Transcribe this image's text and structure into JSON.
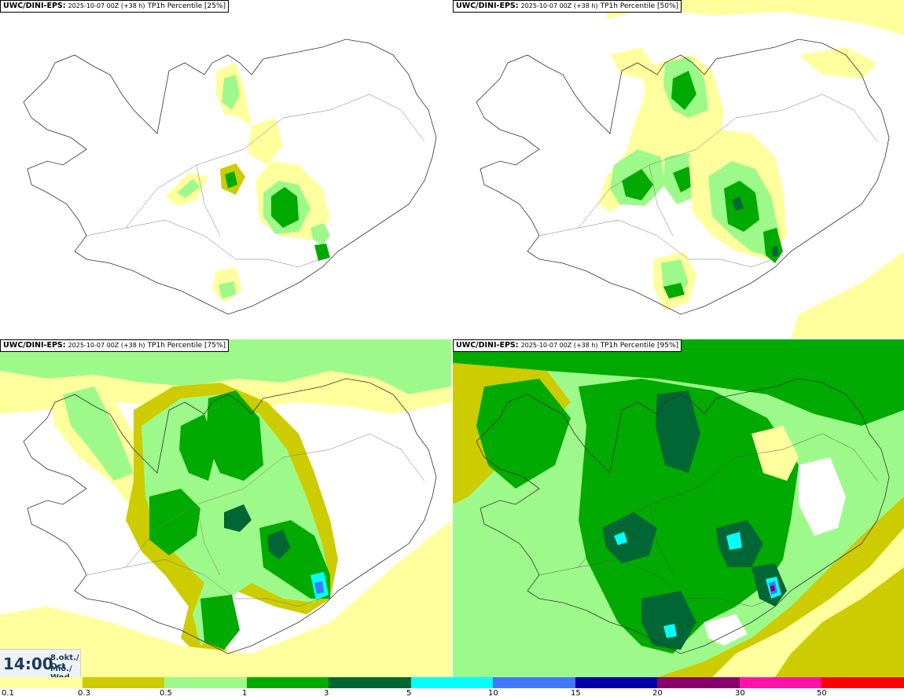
{
  "panels": [
    {
      "model": "UWC/DINI-EPS:",
      "run": "2025-10-07 00Z (+38 h)",
      "field": "TP1h Percentile [25%]"
    },
    {
      "model": "UWC/DINI-EPS:",
      "run": "2025-10-07 00Z (+38 h)",
      "field": "TP1h Percentile [50%]"
    },
    {
      "model": "UWC/DINI-EPS:",
      "run": "2025-10-07 00Z (+38 h)",
      "field": "TP1h Percentile [75%]"
    },
    {
      "model": "UWC/DINI-EPS:",
      "run": "2025-10-07 00Z (+38 h)",
      "field": "TP1h Percentile [95%]"
    }
  ],
  "valid_time": {
    "time": "14:00",
    "date_line1": "8.okt./ Oct",
    "date_line2": "Mið./ Wed"
  },
  "legend": {
    "colors": [
      "#ffff9e",
      "#cccc00",
      "#9dfa8a",
      "#00aa00",
      "#006633",
      "#00ffff",
      "#4477ff",
      "#0000aa",
      "#88006b",
      "#ff11aa",
      "#ff0000"
    ],
    "labels": [
      "0.1",
      "0.3",
      "0.5",
      "1",
      "3",
      "5",
      "10",
      "15",
      "20",
      "30",
      "50"
    ]
  }
}
